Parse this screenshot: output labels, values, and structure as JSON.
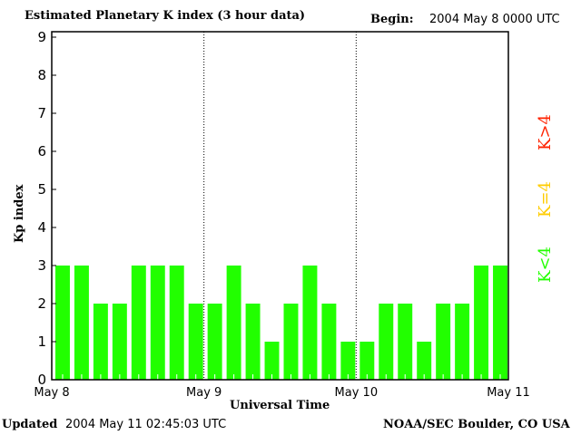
{
  "header": {
    "title": "Estimated Planetary K index (3 hour data)",
    "begin_label": "Begin:",
    "begin_value": "2004 May 8 0000 UTC"
  },
  "footer": {
    "updated_label": "Updated",
    "updated_value": "2004 May 11 02:45:03 UTC",
    "source": "NOAA/SEC Boulder, CO USA"
  },
  "legend": [
    {
      "label": "K<4",
      "color": "#22ff00"
    },
    {
      "label": "K=4",
      "color": "#ffcc00"
    },
    {
      "label": "K>4",
      "color": "#ff2200"
    }
  ],
  "chart_data": {
    "type": "bar",
    "title": "Estimated Planetary K index (3 hour data)",
    "xlabel": "Universal Time",
    "ylabel": "Kp index",
    "ylim": [
      0,
      9
    ],
    "yticks": [
      "0",
      "1",
      "2",
      "3",
      "4",
      "5",
      "6",
      "7",
      "8",
      "9"
    ],
    "xticks": [
      "May 8",
      "May 9",
      "May 10",
      "May 11"
    ],
    "bar_color": "#22ff00",
    "values": [
      3,
      3,
      2,
      2,
      3,
      3,
      3,
      2,
      2,
      3,
      2,
      1,
      2,
      3,
      2,
      1,
      1,
      2,
      2,
      1,
      2,
      2,
      3,
      3
    ]
  }
}
